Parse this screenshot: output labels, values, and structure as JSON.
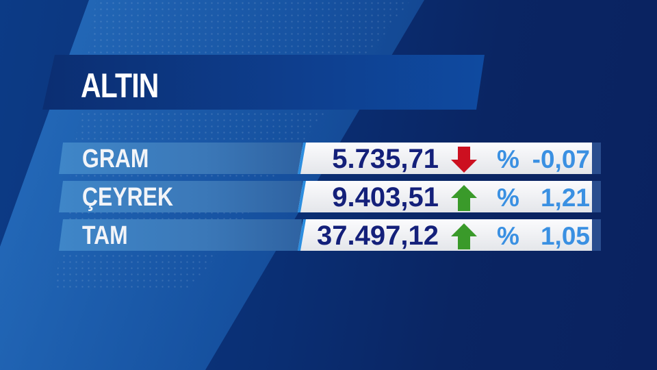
{
  "title": "ALTIN",
  "colors": {
    "value": "#14207a",
    "percent": "#3a90e2",
    "up": "#3a9a2a",
    "down": "#cc1020"
  },
  "rows": [
    {
      "label": "GRAM",
      "value": "5.735,71",
      "direction": "down",
      "percent_sign": "%",
      "change": "-0,07"
    },
    {
      "label": "ÇEYREK",
      "value": "9.403,51",
      "direction": "up",
      "percent_sign": "%",
      "change": "1,21"
    },
    {
      "label": "TAM",
      "value": "37.497,12",
      "direction": "up",
      "percent_sign": "%",
      "change": "1,05"
    }
  ]
}
